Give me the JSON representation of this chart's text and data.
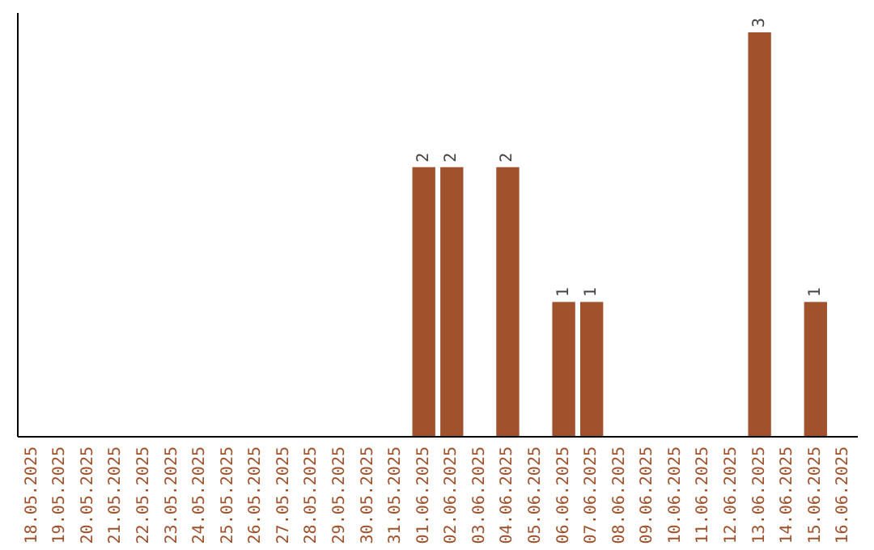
{
  "chart_data": {
    "type": "bar",
    "categories": [
      "18.05.2025",
      "19.05.2025",
      "20.05.2025",
      "21.05.2025",
      "22.05.2025",
      "23.05.2025",
      "24.05.2025",
      "25.05.2025",
      "26.05.2025",
      "27.05.2025",
      "28.05.2025",
      "29.05.2025",
      "30.05.2025",
      "31.05.2025",
      "01.06.2025",
      "02.06.2025",
      "03.06.2025",
      "04.06.2025",
      "05.06.2025",
      "06.06.2025",
      "07.06.2025",
      "08.06.2025",
      "09.06.2025",
      "10.06.2025",
      "11.06.2025",
      "12.06.2025",
      "13.06.2025",
      "14.06.2025",
      "15.06.2025",
      "16.06.2025"
    ],
    "values": [
      null,
      null,
      null,
      null,
      null,
      null,
      null,
      null,
      null,
      null,
      null,
      null,
      null,
      null,
      2,
      2,
      null,
      2,
      null,
      1,
      1,
      null,
      null,
      null,
      null,
      null,
      3,
      null,
      1,
      null
    ],
    "data_labels": true,
    "color": "#a0522d"
  }
}
